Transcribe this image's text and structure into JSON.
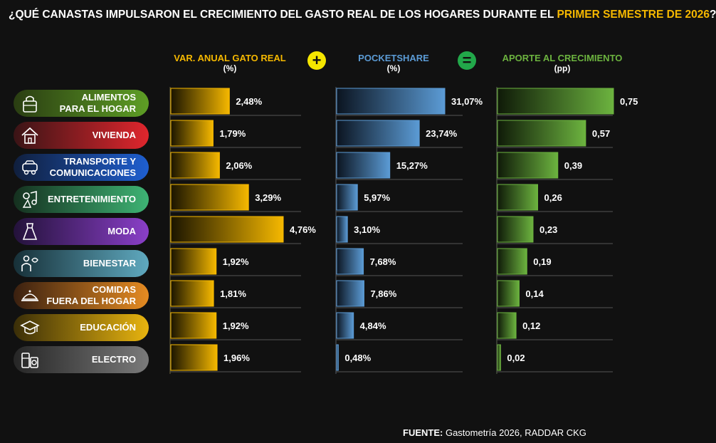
{
  "title": {
    "prefix": "¿QUÉ CANASTAS IMPULSARON EL CRECIMIENTO DEL GASTO REAL DE LOS HOGARES DURANTE EL ",
    "highlight": "PRIMER SEMESTRE DE 2026",
    "suffix": "?"
  },
  "columns": {
    "var": {
      "title": "VAR. ANUAL GATO REAL",
      "unit": "(%)"
    },
    "pocket": {
      "title": "POCKETSHARE",
      "unit": "(%)"
    },
    "aporte": {
      "title": "APORTE AL CRECIMIENTO",
      "unit": "(pp)"
    }
  },
  "operators": {
    "plus": "+",
    "equals": "="
  },
  "categories": [
    {
      "label": "ALIMENTOS\nPARA EL HOGAR",
      "icon": "grocery-bag-icon",
      "color_from": "#2a3d12",
      "color_to": "#5e9e25"
    },
    {
      "label": "VIVIENDA",
      "icon": "house-icon",
      "color_from": "#3a1416",
      "color_to": "#e0262d"
    },
    {
      "label": "TRANSPORTE Y\nCOMUNICACIONES",
      "icon": "transport-icon",
      "color_from": "#101f3d",
      "color_to": "#1f5fd0"
    },
    {
      "label": "ENTRETENIMIENTO",
      "icon": "entertainment-icon",
      "color_from": "#15301f",
      "color_to": "#3eb374"
    },
    {
      "label": "MODA",
      "icon": "dress-icon",
      "color_from": "#23123a",
      "color_to": "#8a3fc8"
    },
    {
      "label": "BIENESTAR",
      "icon": "wellness-icon",
      "color_from": "#173038",
      "color_to": "#5fa9bf"
    },
    {
      "label": "COMIDAS\nFUERA DEL HOGAR",
      "icon": "food-tray-icon",
      "color_from": "#3a2010",
      "color_to": "#e58b22"
    },
    {
      "label": "EDUCACIÓN",
      "icon": "graduation-cap-icon",
      "color_from": "#3a2e08",
      "color_to": "#e8b40f"
    },
    {
      "label": "ELECTRO",
      "icon": "appliances-icon",
      "color_from": "#262626",
      "color_to": "#7a7a7a"
    }
  ],
  "chart_data": [
    {
      "type": "bar",
      "title": "VAR. ANUAL GATO REAL",
      "unit": "(%)",
      "categories": [
        "ALIMENTOS PARA EL HOGAR",
        "VIVIENDA",
        "TRANSPORTE Y COMUNICACIONES",
        "ENTRETENIMIENTO",
        "MODA",
        "BIENESTAR",
        "COMIDAS FUERA DEL HOGAR",
        "EDUCACIÓN",
        "ELECTRO"
      ],
      "values": [
        2.48,
        1.79,
        2.06,
        3.29,
        4.76,
        1.92,
        1.81,
        1.92,
        1.96
      ],
      "labels": [
        "2,48%",
        "1,79%",
        "2,06%",
        "3,29%",
        "4,76%",
        "1,92%",
        "1,81%",
        "1,92%",
        "1,96%"
      ],
      "color": "#f5b800"
    },
    {
      "type": "bar",
      "title": "POCKETSHARE",
      "unit": "(%)",
      "categories": [
        "ALIMENTOS PARA EL HOGAR",
        "VIVIENDA",
        "TRANSPORTE Y COMUNICACIONES",
        "ENTRETENIMIENTO",
        "MODA",
        "BIENESTAR",
        "COMIDAS FUERA DEL HOGAR",
        "EDUCACIÓN",
        "ELECTRO"
      ],
      "values": [
        31.07,
        23.74,
        15.27,
        5.97,
        3.1,
        7.68,
        7.86,
        4.84,
        0.48
      ],
      "labels": [
        "31,07%",
        "23,74%",
        "15,27%",
        "5,97%",
        "3,10%",
        "7,68%",
        "7,86%",
        "4,84%",
        "0,48%"
      ],
      "color": "#5b9bd5"
    },
    {
      "type": "bar",
      "title": "APORTE AL CRECIMIENTO",
      "unit": "(pp)",
      "categories": [
        "ALIMENTOS PARA EL HOGAR",
        "VIVIENDA",
        "TRANSPORTE Y COMUNICACIONES",
        "ENTRETENIMIENTO",
        "MODA",
        "BIENESTAR",
        "COMIDAS FUERA DEL HOGAR",
        "EDUCACIÓN",
        "ELECTRO"
      ],
      "values": [
        0.75,
        0.57,
        0.39,
        0.26,
        0.23,
        0.19,
        0.14,
        0.12,
        0.02
      ],
      "labels": [
        "0,75",
        "0,57",
        "0,39",
        "0,26",
        "0,23",
        "0,19",
        "0,14",
        "0,12",
        "0,02"
      ],
      "color": "#6cb33f"
    }
  ],
  "footer": {
    "label": "FUENTE:",
    "text": " Gastometría 2026, RADDAR CKG"
  },
  "colors": {
    "background": "#111111",
    "accent": "#f5b800",
    "plus_bg": "#f5e600",
    "equals_bg": "#22a84a"
  }
}
